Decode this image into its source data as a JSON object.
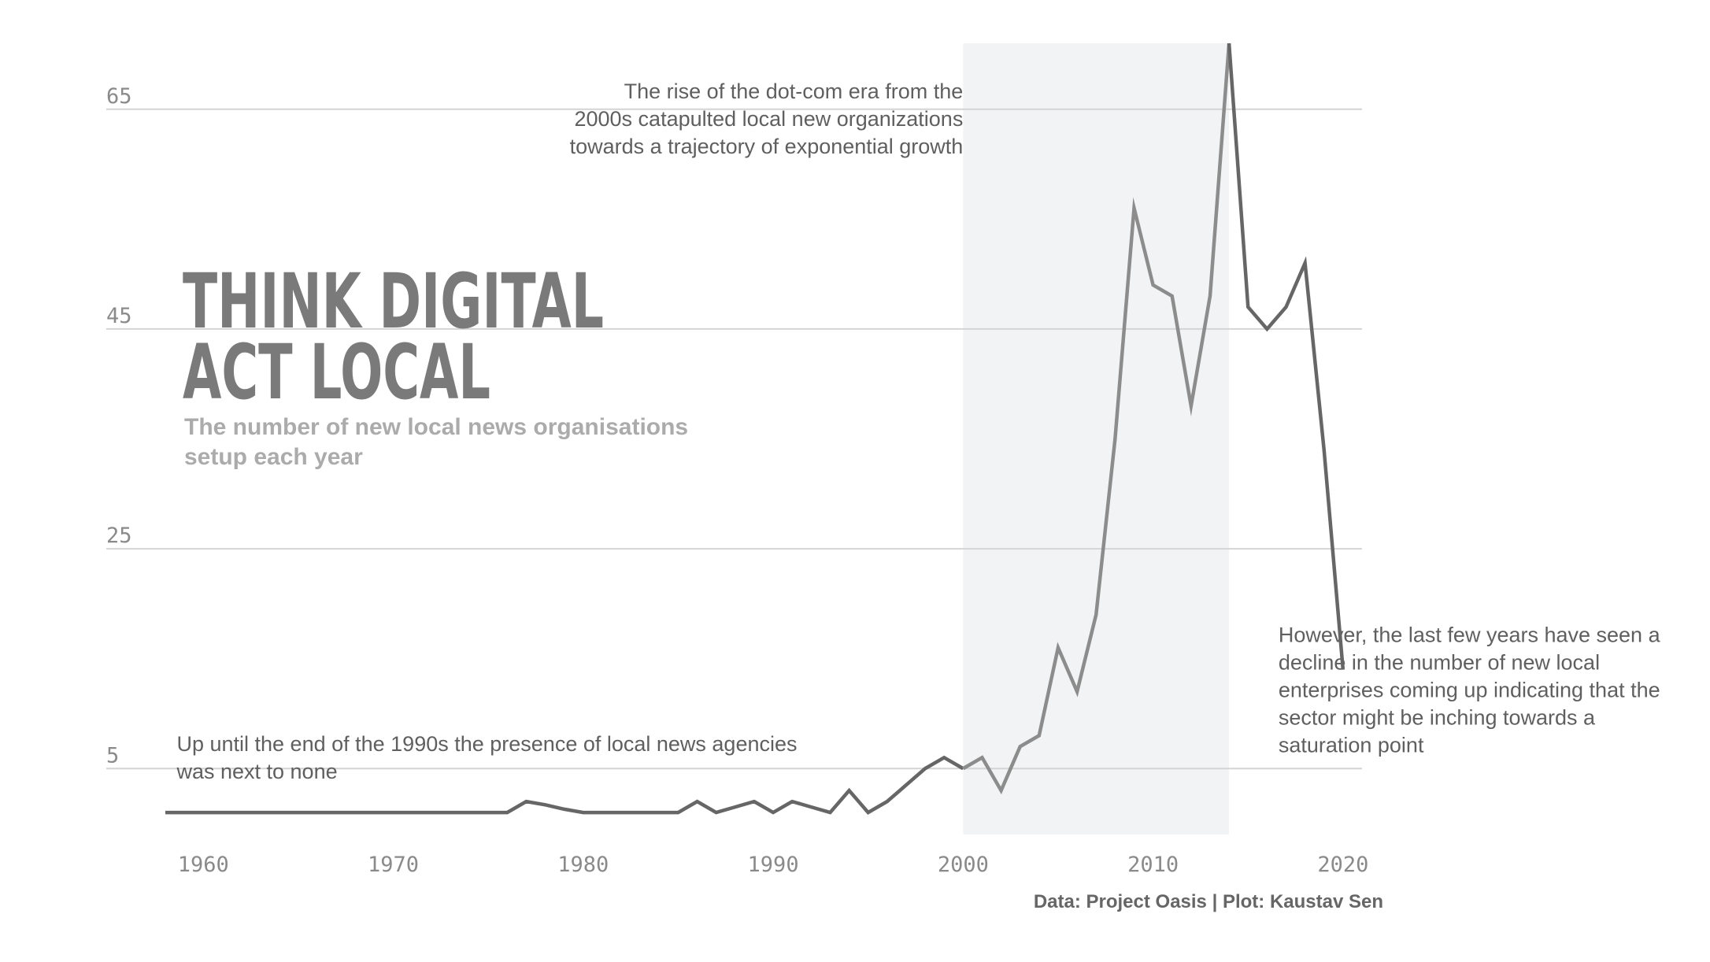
{
  "chart_data": {
    "type": "line",
    "title": [
      "THINK DIGITAL",
      "ACT LOCAL"
    ],
    "subtitle": [
      "The number of new local news organisations",
      "setup each year"
    ],
    "caption": "Data: Project Oasis | Plot: Kaustav Sen",
    "xlabel": "",
    "ylabel": "",
    "xlim": [
      1958,
      2021
    ],
    "ylim": [
      -1,
      71
    ],
    "x_ticks": [
      1960,
      1970,
      1980,
      1990,
      2000,
      2010,
      2020
    ],
    "y_ticks": [
      5,
      25,
      45,
      65
    ],
    "grid": "horizontal",
    "highlight_range": [
      2000,
      2014
    ],
    "series": [
      {
        "x": [
          1958,
          1959,
          1960,
          1961,
          1962,
          1963,
          1964,
          1965,
          1966,
          1967,
          1968,
          1969,
          1970,
          1971,
          1972,
          1973,
          1974,
          1975,
          1976,
          1977,
          1978,
          1979,
          1980,
          1981,
          1982,
          1983,
          1984,
          1985,
          1986,
          1987,
          1988,
          1989,
          1990,
          1991,
          1992,
          1993,
          1994,
          1995,
          1996,
          1997,
          1998,
          1999,
          2000,
          2001,
          2002,
          2003,
          2004,
          2005,
          2006,
          2007,
          2008,
          2009,
          2010,
          2011,
          2012,
          2013,
          2014,
          2015,
          2016,
          2017,
          2018,
          2019,
          2020
        ],
        "y": [
          1,
          1,
          1,
          1,
          1,
          1,
          1,
          1,
          1,
          1,
          1,
          1,
          1,
          1,
          1,
          1,
          1,
          1,
          1,
          2,
          1.7,
          1.3,
          1,
          1,
          1,
          1,
          1,
          1,
          2,
          1,
          1.5,
          2,
          1,
          2,
          1.5,
          1,
          3,
          1,
          2,
          3.5,
          5,
          6,
          5,
          6,
          3,
          7,
          8,
          16,
          12,
          19,
          35,
          56,
          49,
          48,
          38,
          48,
          71,
          47,
          45,
          47,
          51,
          34,
          14
        ]
      }
    ],
    "colors": {
      "line": "#666666",
      "line_highlight": "#8c8c8c",
      "band": "#f2f3f4",
      "grid": "#d4d4d4"
    },
    "annotations": [
      {
        "lines": [
          "The rise of the dot-com era from the",
          "2000s catapulted local new organizations",
          "towards a trajectory of exponential growth"
        ],
        "align": "right",
        "anchor_year": 2000,
        "anchor_value": 66
      },
      {
        "lines": [
          "Up until the end of the 1990s the presence of local news agencies",
          "was next to none"
        ],
        "align": "left",
        "anchor_year": 1958.6,
        "anchor_value": 6.6
      },
      {
        "lines": [
          "However, the last few years have seen a",
          "decline in the number of new local",
          "enterprises coming up indicating that the",
          "sector might be inching towards a",
          "saturation point"
        ],
        "align": "left",
        "anchor_year": 2016.6,
        "anchor_value": 16.5
      }
    ]
  }
}
